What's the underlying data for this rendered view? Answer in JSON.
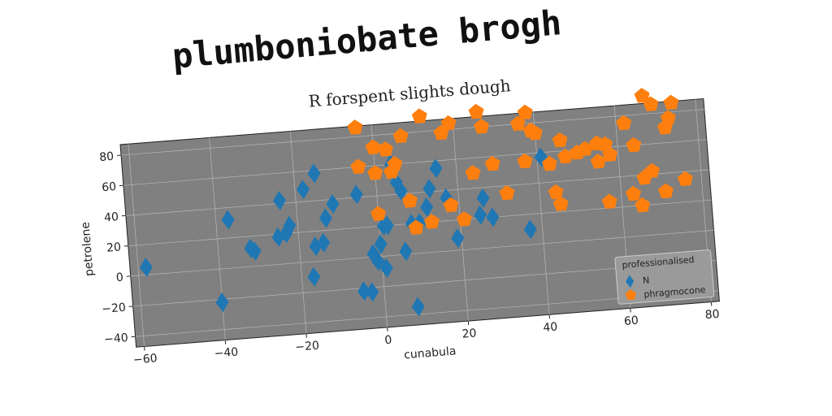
{
  "page": {
    "heading": "plumboniobate brogh"
  },
  "chart_data": {
    "type": "scatter",
    "title": "R forspent slights dough",
    "xlabel": "cunabula",
    "ylabel": "petrolene",
    "xlim": [
      -62,
      82
    ],
    "ylim": [
      -47,
      87
    ],
    "xticks": [
      -60,
      -40,
      -20,
      0,
      20,
      40,
      60,
      80
    ],
    "yticks": [
      -40,
      -20,
      0,
      20,
      40,
      60,
      80
    ],
    "grid": true,
    "plot_background": "#808080",
    "legend": {
      "title": "professionalised",
      "position": "lower-right"
    },
    "series": [
      {
        "name": "N",
        "marker": "diamond",
        "color": "#1f77b4",
        "points": [
          [
            -58,
            5
          ],
          [
            -40,
            -22
          ],
          [
            -37,
            32
          ],
          [
            -32,
            12
          ],
          [
            -31,
            10
          ],
          [
            -25,
            18
          ],
          [
            -24,
            42
          ],
          [
            -23,
            20
          ],
          [
            -22,
            25
          ],
          [
            -18,
            48
          ],
          [
            -17,
            -10
          ],
          [
            -16,
            10
          ],
          [
            -15,
            58
          ],
          [
            -14,
            12
          ],
          [
            -13,
            28
          ],
          [
            -11,
            37
          ],
          [
            -5,
            42
          ],
          [
            -5,
            -22
          ],
          [
            -3,
            -23
          ],
          [
            -2,
            2
          ],
          [
            -1,
            -3
          ],
          [
            0,
            8
          ],
          [
            1,
            20
          ],
          [
            1,
            -8
          ],
          [
            2,
            20
          ],
          [
            4,
            60
          ],
          [
            5,
            48
          ],
          [
            6,
            2
          ],
          [
            6,
            42
          ],
          [
            8,
            -35
          ],
          [
            8,
            20
          ],
          [
            10,
            20
          ],
          [
            12,
            30
          ],
          [
            13,
            42
          ],
          [
            15,
            55
          ],
          [
            17,
            35
          ],
          [
            19,
            8
          ],
          [
            25,
            22
          ],
          [
            26,
            33
          ],
          [
            28,
            20
          ],
          [
            37,
            10
          ],
          [
            41,
            57
          ]
        ]
      },
      {
        "name": "phragmocone",
        "marker": "pentagon",
        "color": "#ff7f0e",
        "points": [
          [
            -4,
            86
          ],
          [
            -4,
            60
          ],
          [
            0,
            72
          ],
          [
            0,
            55
          ],
          [
            0,
            28
          ],
          [
            3,
            70
          ],
          [
            4,
            55
          ],
          [
            5,
            60
          ],
          [
            7,
            78
          ],
          [
            8,
            35
          ],
          [
            9,
            17
          ],
          [
            12,
            90
          ],
          [
            13,
            20
          ],
          [
            17,
            78
          ],
          [
            18,
            30
          ],
          [
            19,
            84
          ],
          [
            21,
            20
          ],
          [
            24,
            50
          ],
          [
            26,
            90
          ],
          [
            27,
            80
          ],
          [
            29,
            55
          ],
          [
            32,
            35
          ],
          [
            36,
            80
          ],
          [
            37,
            55
          ],
          [
            38,
            87
          ],
          [
            39,
            75
          ],
          [
            40,
            73
          ],
          [
            43,
            52
          ],
          [
            44,
            33
          ],
          [
            45,
            25
          ],
          [
            46,
            67
          ],
          [
            47,
            56
          ],
          [
            50,
            58
          ],
          [
            52,
            60
          ],
          [
            55,
            63
          ],
          [
            55,
            51
          ],
          [
            57,
            62
          ],
          [
            57,
            24
          ],
          [
            58,
            55
          ],
          [
            62,
            75
          ],
          [
            63,
            28
          ],
          [
            64,
            60
          ],
          [
            65,
            20
          ],
          [
            66,
            38
          ],
          [
            67,
            92
          ],
          [
            68,
            42
          ],
          [
            69,
            86
          ],
          [
            71,
            28
          ],
          [
            72,
            70
          ],
          [
            73,
            76
          ],
          [
            74,
            86
          ],
          [
            76,
            35
          ]
        ]
      }
    ]
  }
}
